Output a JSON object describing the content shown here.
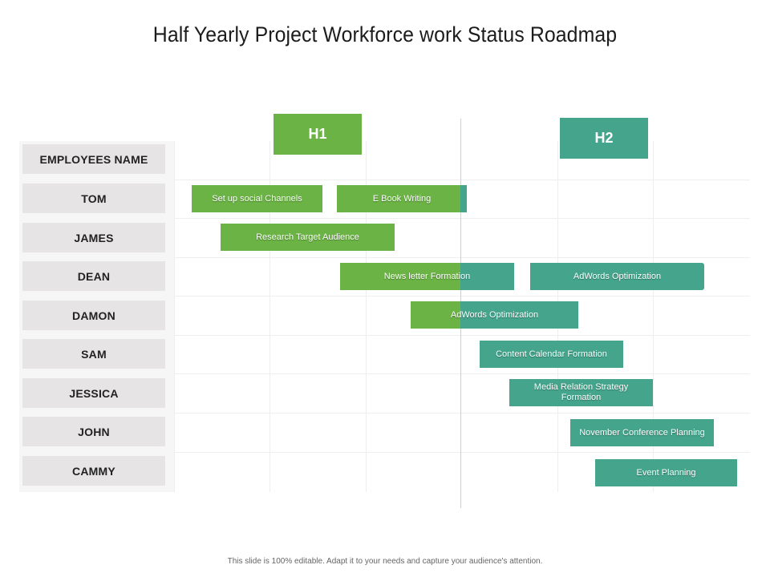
{
  "title": "Half Yearly Project Workforce work Status Roadmap",
  "header_label": "EMPLOYEES NAME",
  "halves": [
    {
      "label": "H1",
      "color": "#6ab344"
    },
    {
      "label": "H2",
      "color": "#44a58c"
    }
  ],
  "employees": [
    "TOM",
    "JAMES",
    "DEAN",
    "DAMON",
    "SAM",
    "JESSICA",
    "JOHN",
    "CAMMY"
  ],
  "tasks": [
    {
      "label": "Set up social Channels",
      "row": 0,
      "colors": [
        "#6ab344"
      ]
    },
    {
      "label": "E Book Writing",
      "row": 0,
      "colors": [
        "#6ab344",
        "#44a58c"
      ]
    },
    {
      "label": "Research Target Audience",
      "row": 1,
      "colors": [
        "#6ab344"
      ]
    },
    {
      "label": "News letter Formation",
      "row": 2,
      "colors": [
        "#6ab344",
        "#44a58c"
      ]
    },
    {
      "label": "AdWords Optimization",
      "row": 2,
      "colors": [
        "#44a58c"
      ]
    },
    {
      "label": "AdWords Optimization",
      "row": 3,
      "colors": [
        "#6ab344",
        "#44a58c"
      ]
    },
    {
      "label": "Content Calendar Formation",
      "row": 4,
      "colors": [
        "#44a58c"
      ]
    },
    {
      "label": "Media Relation Strategy Formation",
      "row": 5,
      "colors": [
        "#44a58c"
      ]
    },
    {
      "label": "November Conference Planning",
      "row": 6,
      "colors": [
        "#44a58c"
      ]
    },
    {
      "label": "Event Planning",
      "row": 7,
      "colors": [
        "#44a58c"
      ]
    }
  ],
  "footer": "This slide is 100% editable. Adapt it to your needs and capture your audience's attention."
}
